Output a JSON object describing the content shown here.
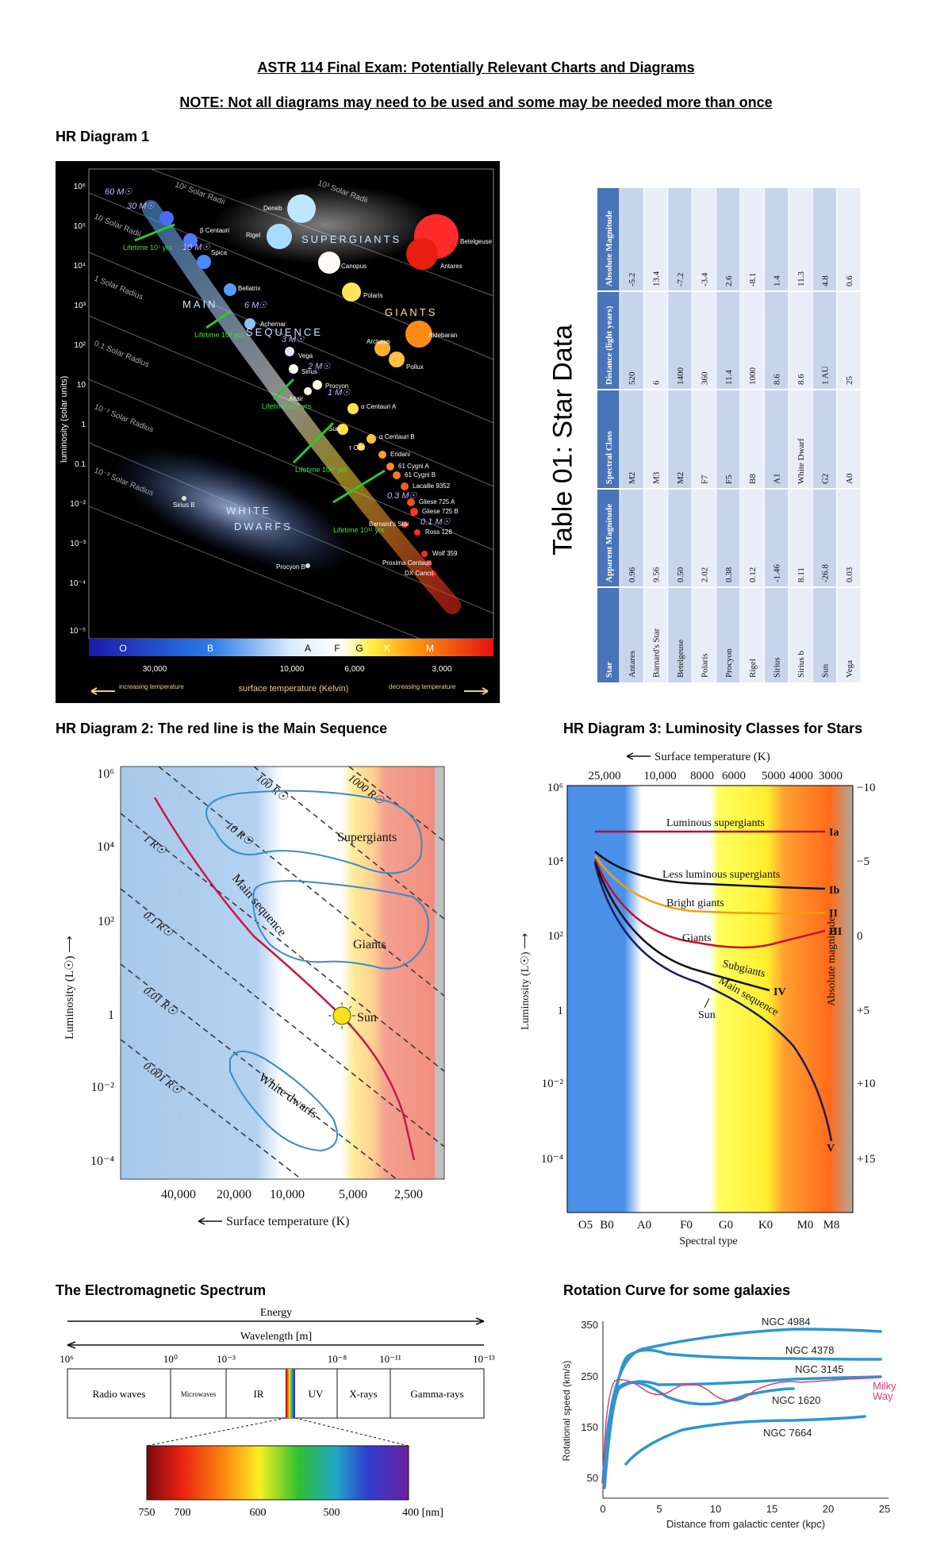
{
  "header": {
    "title": "ASTR 114 Final Exam:  Potentially Relevant Charts and Diagrams",
    "note": "NOTE:  Not all diagrams may need to be used and some may be needed more than once"
  },
  "hr1": {
    "heading": "HR Diagram 1",
    "ylabel": "luminosity (solar units)",
    "xlabel": "surface temperature (Kelvin)",
    "left_arrow": "increasing temperature",
    "right_arrow": "decreasing temperature",
    "y_ticks": [
      "10⁶",
      "10⁵",
      "10⁴",
      "10³",
      "10²",
      "10",
      "1",
      "0.1",
      "10⁻²",
      "10⁻³",
      "10⁻⁴",
      "10⁻⁵"
    ],
    "x_ticks": [
      "30,000",
      "10,000",
      "6,000",
      "3,000"
    ],
    "classes": [
      "O",
      "B",
      "A",
      "F",
      "G",
      "K",
      "M"
    ],
    "radii": [
      "10³ Solar Radii",
      "10² Solar Radii",
      "10 Solar Radii",
      "1 Solar Radius",
      "0.1 Solar Radius",
      "10⁻² Solar Radius",
      "10⁻³ Solar Radius"
    ],
    "regions": [
      "SUPERGIANTS",
      "GIANTS",
      "MAIN",
      "SEQUENCE",
      "WHITE",
      "DWARFS"
    ],
    "masses": [
      "60 M☉",
      "30 M☉",
      "10 M☉",
      "6 M☉",
      "3 M☉",
      "2 M☉",
      "1 M☉",
      "0.3 M☉",
      "0.1 M☉"
    ],
    "lifetimes": [
      "Lifetime 10⁷ yrs",
      "Lifetime 10⁸ yrs",
      "Lifetime 10⁹ yrs",
      "Lifetime 10¹⁰ yrs",
      "Lifetime 10¹¹ yrs"
    ],
    "stars": [
      "Deneb",
      "Rigel",
      "Betelgeuse",
      "Antares",
      "Canopus",
      "Polaris",
      "Aldebaran",
      "Arcturus",
      "Pollux",
      "β Centauri",
      "Spica",
      "Bellatrix",
      "Achernar",
      "Vega",
      "Sirius",
      "Procyon",
      "Altair",
      "α Centauri A",
      "Sun",
      "α Centauri B",
      "τ Ceti",
      "Eridani",
      "61 Cygni A",
      "61 Cygni B",
      "Lacaille 9352",
      "Gliese 725 A",
      "Gliese 725 B",
      "Barnard's Star",
      "Ross 128",
      "Wolf 359",
      "Proxima Centauri",
      "DX Cancri",
      "Sirius B",
      "Procyon B"
    ]
  },
  "table": {
    "caption": "Table 01: Star Data",
    "headers": [
      "Star",
      "Apparent Magnitude",
      "Spectral Class",
      "Distance (light years)",
      "Absolute Magnitude"
    ],
    "rows": [
      [
        "Antares",
        "0.96",
        "M2",
        "520",
        "-5.2"
      ],
      [
        "Barnard's Star",
        "9.56",
        "M3",
        "6",
        "13.4"
      ],
      [
        "Betelgeuse",
        "0.50",
        "M2",
        "1400",
        "-7.2"
      ],
      [
        "Polaris",
        "2.02",
        "F7",
        "360",
        "-3.4"
      ],
      [
        "Procyon",
        "0.38",
        "F5",
        "11.4",
        "2.6"
      ],
      [
        "Rigel",
        "0.12",
        "B8",
        "1000",
        "-8.1"
      ],
      [
        "Sirius",
        "-1.46",
        "A1",
        "8.6",
        "1.4"
      ],
      [
        "Sirius b",
        "8.11",
        "White Dwarf",
        "8.6",
        "11.3"
      ],
      [
        "Sun",
        "-26.8",
        "G2",
        "1 AU",
        "4.8"
      ],
      [
        "Vega",
        "0.03",
        "A0",
        "25",
        "0.6"
      ]
    ]
  },
  "hr2": {
    "heading": "HR Diagram 2: The red line is the Main Sequence",
    "ylabel": "Luminosity (L☉) ⟶",
    "xlabel": "Surface temperature (K)",
    "y_ticks": [
      "10⁶",
      "10⁴",
      "10²",
      "1",
      "10⁻²",
      "10⁻⁴"
    ],
    "x_ticks": [
      "40,000",
      "20,000",
      "10,000",
      "5,000",
      "2,500"
    ],
    "radii": [
      "1000 R☉",
      "100 R☉",
      "10 R☉",
      "1 R☉",
      "0.1 R☉",
      "0.01 R☉",
      "0.001 R☉"
    ],
    "regions": [
      "Supergiants",
      "Giants",
      "Main sequence",
      "White dwarfs",
      "Sun"
    ]
  },
  "hr3": {
    "heading": "HR Diagram 3: Luminosity Classes for Stars",
    "top_label": "Surface temperature (K)",
    "top_ticks": [
      "25,000",
      "10,000",
      "8000",
      "6000",
      "5000",
      "4000",
      "3000"
    ],
    "ylabel": "Luminosity (L☉) ⟶",
    "right_label": "Absolute magnitude",
    "y_ticks": [
      "10⁶",
      "10⁴",
      "10²",
      "1",
      "10⁻²",
      "10⁻⁴"
    ],
    "right_ticks": [
      "−10",
      "−5",
      "0",
      "+5",
      "+10",
      "+15"
    ],
    "x_ticks": [
      "O5",
      "B0",
      "A0",
      "F0",
      "G0",
      "K0",
      "M0",
      "M8"
    ],
    "xlabel": "Spectral type",
    "curves": [
      "Luminous supergiants",
      "Less luminous supergiants",
      "Bright giants",
      "Giants",
      "Subgiants",
      "Main sequence",
      "Sun"
    ],
    "classes": [
      "Ia",
      "Ib",
      "II",
      "III",
      "IV",
      "V"
    ]
  },
  "em": {
    "heading": "The Electromagnetic Spectrum",
    "energy": "Energy",
    "wavelength": "Wavelength [m]",
    "ticks": [
      "10⁶",
      "10⁰",
      "10⁻³",
      "10⁻⁸",
      "10⁻¹¹",
      "10⁻¹³"
    ],
    "bands": [
      "Radio waves",
      "Microwaves",
      "IR",
      "UV",
      "X-rays",
      "Gamma-rays"
    ],
    "nm_ticks": [
      "750",
      "700",
      "600",
      "500",
      "400 [nm]"
    ]
  },
  "rot": {
    "heading": "Rotation Curve for some galaxies",
    "ylabel": "Rotational speed (km/s)",
    "xlabel": "Distance from galactic center (kpc)",
    "y_ticks": [
      "350",
      "250",
      "150",
      "50"
    ],
    "x_ticks": [
      "0",
      "5",
      "10",
      "15",
      "20",
      "25"
    ],
    "galaxies": [
      "NGC 4984",
      "NGC 4378",
      "NGC 3145",
      "NGC 1620",
      "NGC 7664",
      "Milky",
      "Way"
    ]
  },
  "colors": {
    "main_sequence": "#c8174a",
    "curve_blue": "#2e96cf",
    "hr1_bg": "#000000"
  }
}
